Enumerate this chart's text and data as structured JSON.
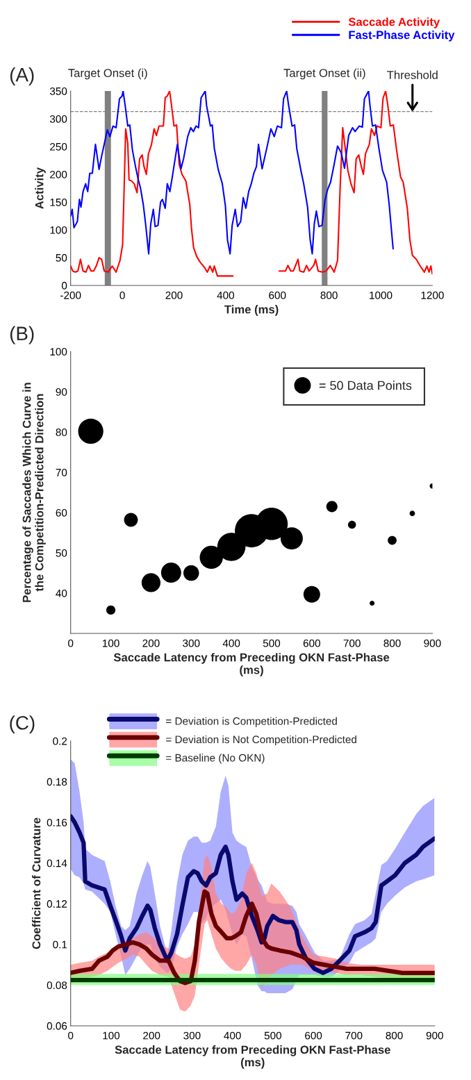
{
  "chart_data": [
    {
      "type": "line",
      "title": "(A)",
      "xlabel": "Time (ms)",
      "ylabel": "Activity",
      "xlim": [
        -200,
        1200
      ],
      "ylim": [
        0,
        350
      ],
      "xticks": [
        -200,
        0,
        200,
        400,
        600,
        800,
        1000,
        1200
      ],
      "yticks": [
        0,
        50,
        100,
        150,
        200,
        250,
        300,
        350
      ],
      "legend": "top right",
      "grid": false,
      "series": [
        {
          "name": "Saccade Activity",
          "color": "#ff0000",
          "x": [
            -200,
            -192,
            -182,
            -172,
            -162,
            -152,
            -141,
            -131,
            -121,
            -111,
            -100,
            -90,
            -80,
            -70,
            -55,
            -39,
            -24,
            -9,
            1,
            6,
            13,
            21,
            26,
            36,
            46,
            57,
            67,
            77,
            84,
            93,
            101,
            113,
            123,
            132,
            142,
            159,
            166,
            174,
            183,
            190,
            200,
            210,
            220,
            231,
            246,
            261,
            268,
            276,
            288,
            301,
            317,
            329,
            339,
            350,
            356,
            368,
            428,
            515,
            607,
            631,
            641,
            652,
            662,
            680,
            687,
            702,
            713,
            723,
            741,
            748,
            758,
            774,
            789,
            805,
            820,
            833,
            843,
            853,
            863,
            873,
            885,
            897,
            905,
            915,
            925,
            933,
            941,
            956,
            964,
            976,
            986,
            1001,
            1009,
            1019,
            1027,
            1037,
            1049,
            1062,
            1077,
            1087,
            1103,
            1113,
            1123,
            1138,
            1153,
            1169,
            1179,
            1187,
            1194,
            1200
          ],
          "values": [
            35,
            26,
            24,
            26,
            47,
            26,
            24,
            36,
            26,
            26,
            36,
            50,
            47,
            26,
            24,
            35,
            24,
            45,
            73,
            157,
            282,
            256,
            190,
            188,
            183,
            167,
            228,
            235,
            214,
            200,
            237,
            254,
            282,
            270,
            287,
            287,
            338,
            341,
            350,
            326,
            287,
            289,
            218,
            200,
            188,
            146,
            101,
            68,
            52,
            42,
            33,
            24,
            35,
            24,
            35,
            17,
            17,
            null,
            26,
            26,
            36,
            26,
            26,
            47,
            26,
            24,
            36,
            26,
            36,
            47,
            26,
            24,
            26,
            36,
            24,
            45,
            176,
            284,
            246,
            207,
            183,
            167,
            228,
            235,
            214,
            200,
            237,
            254,
            282,
            270,
            287,
            284,
            337,
            350,
            326,
            287,
            289,
            242,
            195,
            186,
            139,
            82,
            54,
            47,
            35,
            24,
            35,
            24,
            35,
            21
          ]
        },
        {
          "name": "Fast-Phase Activity",
          "color": "#0000ff",
          "x": [
            -200,
            -194,
            -187,
            -180,
            -174,
            -166,
            -160,
            -152,
            -142,
            -134,
            -126,
            -116,
            -104,
            -90,
            -80,
            -65,
            -58,
            -48,
            -36,
            -24,
            -11,
            -1,
            3,
            11,
            21,
            29,
            39,
            51,
            62,
            70,
            81,
            90,
            102,
            110,
            120,
            127,
            138,
            148,
            155,
            166,
            174,
            184,
            194,
            213,
            227,
            237,
            253,
            265,
            275,
            285,
            295,
            305,
            321,
            326,
            341,
            348,
            356,
            371,
            387,
            399,
            407,
            417,
            425,
            437,
            446,
            458,
            468,
            478,
            489,
            499,
            509,
            519,
            527,
            541,
            560,
            575,
            588,
            600,
            616,
            624,
            636,
            643,
            657,
            667,
            675,
            692,
            702,
            717,
            727,
            735,
            743,
            751,
            761,
            773,
            784,
            794,
            806,
            819,
            833,
            847,
            860,
            876,
            891,
            901,
            917,
            929,
            937,
            953,
            958,
            968,
            980,
            993,
            1007,
            1023,
            1033,
            1043,
            1048
          ],
          "values": [
            125,
            137,
            104,
            110,
            115,
            155,
            141,
            169,
            183,
            169,
            202,
            202,
            254,
            209,
            233,
            265,
            280,
            268,
            287,
            284,
            336,
            341,
            350,
            324,
            287,
            289,
            244,
            214,
            190,
            176,
            146,
            111,
            57,
            111,
            137,
            106,
            108,
            150,
            155,
            139,
            183,
            169,
            197,
            254,
            210,
            228,
            268,
            284,
            277,
            287,
            284,
            338,
            350,
            324,
            287,
            289,
            247,
            209,
            183,
            143,
            82,
            57,
            108,
            137,
            106,
            115,
            158,
            139,
            169,
            183,
            202,
            214,
            254,
            210,
            249,
            282,
            268,
            287,
            284,
            336,
            350,
            326,
            287,
            289,
            247,
            205,
            183,
            141,
            82,
            57,
            111,
            134,
            106,
            108,
            153,
            172,
            186,
            216,
            251,
            239,
            211,
            270,
            284,
            277,
            287,
            285,
            336,
            350,
            326,
            287,
            289,
            247,
            207,
            186,
            145,
            92,
            66
          ]
        }
      ],
      "bands": [
        {
          "axis": "x",
          "from": -68,
          "to": -44,
          "label": "Target Onset (i)",
          "color": "#808080"
        },
        {
          "axis": "x",
          "from": 772,
          "to": 794,
          "label": "Target Onset (ii)",
          "color": "#808080"
        }
      ],
      "ref_lines": [
        {
          "axis": "y",
          "value": 313,
          "label": "Threshold",
          "color": "#808080",
          "line_style": "dashed"
        }
      ]
    },
    {
      "type": "bubble",
      "title": "(B)",
      "xlabel": "Saccade Latency from Preceding OKN Fast-Phase\n(ms)",
      "ylabel": "Percentage of Saccades Which Curve in\nthe Competition-Predicted Direction",
      "xlim": [
        0,
        900
      ],
      "ylim": [
        30,
        100
      ],
      "xticks": [
        0,
        100,
        200,
        300,
        400,
        500,
        600,
        700,
        800,
        900
      ],
      "yticks": [
        40,
        50,
        60,
        70,
        80,
        90,
        100
      ],
      "grid": false,
      "x": [
        50,
        100,
        150,
        200,
        250,
        300,
        350,
        400,
        450,
        500,
        550,
        600,
        650,
        700,
        750,
        800,
        850,
        900
      ],
      "values": [
        80.2,
        35.8,
        58.2,
        42.6,
        45.1,
        45.0,
        48.9,
        51.5,
        55.5,
        57.2,
        53.6,
        39.7,
        61.5,
        57.0,
        37.5,
        53.1,
        59.8,
        66.6
      ],
      "sizes": [
        130,
        17,
        39,
        73,
        83,
        50,
        110,
        163,
        227,
        213,
        101,
        57,
        26,
        13,
        5,
        16,
        6,
        6
      ],
      "color": "#000000",
      "size_legend": [
        {
          "value": 50,
          "label": "= 50 Data Points"
        }
      ]
    },
    {
      "type": "line",
      "title": "(C)",
      "xlabel": "Saccade Latency from Preceding OKN Fast-Phase\n(ms)",
      "ylabel": "Coefficient of Curvature",
      "xlim": [
        0,
        900
      ],
      "ylim": [
        0.06,
        0.2
      ],
      "xticks": [
        0,
        100,
        200,
        300,
        400,
        500,
        600,
        700,
        800,
        900
      ],
      "yticks": [
        0.06,
        0.08,
        0.1,
        0.12,
        0.14,
        0.16,
        0.18,
        0.2
      ],
      "legend": "top",
      "grid": false,
      "series": [
        {
          "name": "= Deviation is Competition-Predicted",
          "color": "#0a0a6e",
          "x": [
            0,
            10,
            22,
            32,
            36,
            53,
            84,
            98,
            111,
            125,
            135,
            146,
            163,
            177,
            190,
            197,
            208,
            221,
            239,
            249,
            263,
            276,
            290,
            304,
            314,
            324,
            335,
            345,
            359,
            371,
            383,
            390,
            400,
            410,
            424,
            434,
            448,
            462,
            472,
            479,
            486,
            500,
            514,
            531,
            548,
            558,
            565,
            582,
            603,
            624,
            644,
            665,
            689,
            703,
            727,
            744,
            754,
            768,
            782,
            802,
            826,
            854,
            871,
            899
          ],
          "values": [
            0.163,
            0.16,
            0.155,
            0.15,
            0.131,
            0.129,
            0.127,
            0.119,
            0.112,
            0.104,
            0.097,
            0.103,
            0.108,
            0.114,
            0.119,
            0.117,
            0.108,
            0.1,
            0.092,
            0.096,
            0.105,
            0.119,
            0.133,
            0.136,
            0.135,
            0.131,
            0.129,
            0.133,
            0.135,
            0.144,
            0.148,
            0.144,
            0.131,
            0.122,
            0.125,
            0.123,
            0.114,
            0.107,
            0.101,
            0.103,
            0.109,
            0.114,
            0.112,
            0.111,
            0.111,
            0.107,
            0.1,
            0.093,
            0.088,
            0.086,
            0.088,
            0.092,
            0.097,
            0.104,
            0.106,
            0.108,
            0.111,
            0.129,
            0.131,
            0.134,
            0.14,
            0.144,
            0.148,
            0.152
          ],
          "lower": [
            0.137,
            0.134,
            0.133,
            0.13,
            0.127,
            0.126,
            0.12,
            0.116,
            0.105,
            0.094,
            0.085,
            0.088,
            0.094,
            0.099,
            0.1,
            0.1,
            0.093,
            0.089,
            0.086,
            0.088,
            0.099,
            0.105,
            0.11,
            0.116,
            0.116,
            0.11,
            0.113,
            0.118,
            0.12,
            0.122,
            0.117,
            0.112,
            0.105,
            0.1,
            0.105,
            0.104,
            0.093,
            0.08,
            0.077,
            0.077,
            0.076,
            0.076,
            0.076,
            0.076,
            0.078,
            0.082,
            0.085,
            0.085,
            0.085,
            0.084,
            0.084,
            0.087,
            0.091,
            0.096,
            0.099,
            0.101,
            0.103,
            0.116,
            0.12,
            0.124,
            0.128,
            0.131,
            0.132,
            0.134
          ],
          "upper": [
            0.191,
            0.189,
            0.175,
            0.16,
            0.147,
            0.144,
            0.141,
            0.131,
            0.119,
            0.109,
            0.107,
            0.109,
            0.125,
            0.134,
            0.141,
            0.138,
            0.125,
            0.109,
            0.095,
            0.107,
            0.13,
            0.144,
            0.151,
            0.153,
            0.153,
            0.15,
            0.15,
            0.151,
            0.158,
            0.175,
            0.183,
            0.178,
            0.155,
            0.151,
            0.149,
            0.148,
            0.138,
            0.132,
            0.129,
            0.125,
            0.121,
            0.12,
            0.12,
            0.12,
            0.119,
            0.116,
            0.11,
            0.104,
            0.096,
            0.092,
            0.092,
            0.093,
            0.105,
            0.11,
            0.112,
            0.115,
            0.125,
            0.139,
            0.141,
            0.147,
            0.155,
            0.164,
            0.168,
            0.172
          ]
        },
        {
          "name": "= Deviation is Not Competition-Predicted",
          "color": "#6a0000",
          "x": [
            0,
            22,
            53,
            70,
            91,
            104,
            118,
            139,
            153,
            170,
            187,
            201,
            221,
            242,
            256,
            270,
            283,
            297,
            307,
            317,
            331,
            338,
            348,
            359,
            373,
            386,
            397,
            407,
            421,
            434,
            448,
            459,
            473,
            486,
            496,
            517,
            544,
            572,
            600,
            627,
            655,
            682,
            716,
            751,
            786,
            820,
            854,
            900
          ],
          "values": [
            0.086,
            0.087,
            0.088,
            0.092,
            0.094,
            0.097,
            0.099,
            0.1,
            0.101,
            0.1,
            0.098,
            0.095,
            0.092,
            0.092,
            0.086,
            0.082,
            0.081,
            0.082,
            0.092,
            0.111,
            0.126,
            0.125,
            0.115,
            0.109,
            0.106,
            0.103,
            0.103,
            0.104,
            0.106,
            0.114,
            0.12,
            0.115,
            0.103,
            0.099,
            0.098,
            0.097,
            0.096,
            0.094,
            0.091,
            0.09,
            0.089,
            0.088,
            0.088,
            0.088,
            0.087,
            0.086,
            0.086,
            0.086
          ],
          "lower": [
            0.082,
            0.083,
            0.084,
            0.085,
            0.087,
            0.089,
            0.091,
            0.093,
            0.095,
            0.094,
            0.09,
            0.087,
            0.085,
            0.084,
            0.076,
            0.068,
            0.067,
            0.07,
            0.075,
            0.09,
            0.11,
            0.112,
            0.105,
            0.098,
            0.093,
            0.09,
            0.088,
            0.087,
            0.087,
            0.09,
            0.095,
            0.09,
            0.079,
            0.082,
            0.085,
            0.088,
            0.09,
            0.09,
            0.087,
            0.087,
            0.086,
            0.085,
            0.085,
            0.084,
            0.083,
            0.083,
            0.083,
            0.082
          ],
          "upper": [
            0.09,
            0.091,
            0.092,
            0.094,
            0.096,
            0.098,
            0.099,
            0.102,
            0.103,
            0.105,
            0.106,
            0.104,
            0.1,
            0.098,
            0.096,
            0.094,
            0.093,
            0.094,
            0.1,
            0.115,
            0.142,
            0.144,
            0.138,
            0.125,
            0.12,
            0.118,
            0.115,
            0.116,
            0.122,
            0.135,
            0.14,
            0.135,
            0.124,
            0.125,
            0.13,
            0.126,
            0.118,
            0.104,
            0.095,
            0.094,
            0.093,
            0.091,
            0.09,
            0.09,
            0.09,
            0.09,
            0.09,
            0.09
          ]
        },
        {
          "name": "= Baseline (No OKN)",
          "color": "#003d00",
          "x": [
            0,
            900
          ],
          "values": [
            0.0825,
            0.0825
          ],
          "lower": [
            0.08,
            0.08
          ],
          "upper": [
            0.0855,
            0.0855
          ]
        }
      ]
    }
  ]
}
